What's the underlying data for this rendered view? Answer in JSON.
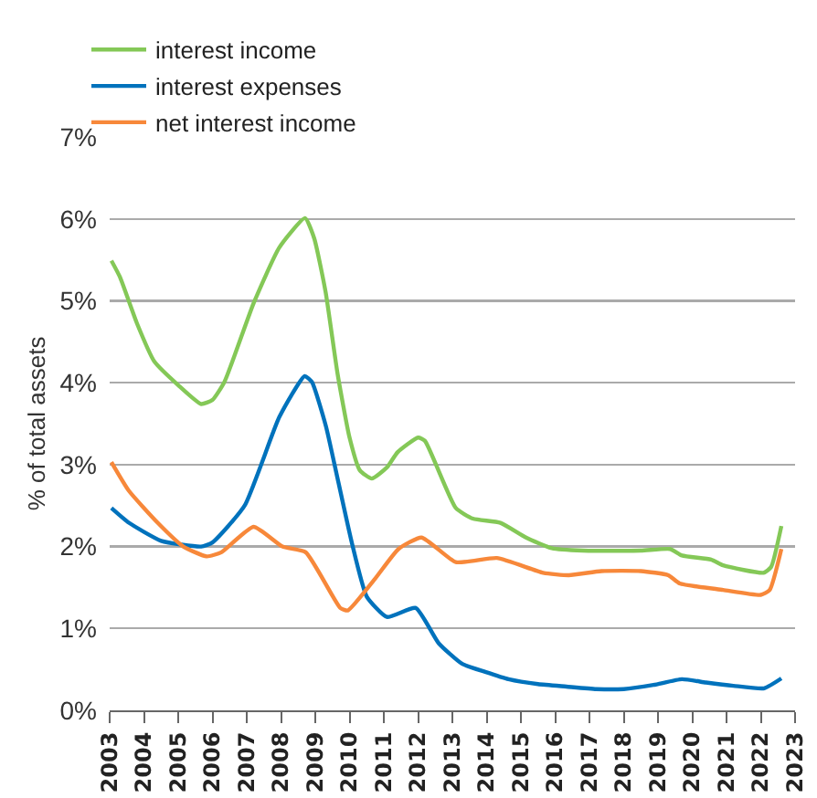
{
  "chart_data": {
    "type": "line",
    "ylabel": "% of total assets",
    "legend": "top left",
    "grid": "y",
    "marker": "none",
    "line_style": "solid",
    "xlim": [
      2003,
      2023
    ],
    "xticks": [
      2003,
      2004,
      2005,
      2006,
      2007,
      2008,
      2009,
      2010,
      2011,
      2012,
      2013,
      2014,
      2015,
      2016,
      2017,
      2018,
      2019,
      2020,
      2021,
      2022,
      2023
    ],
    "ylim": [
      0,
      7
    ],
    "yticks": [
      {
        "value": 0,
        "label": "0%"
      },
      {
        "value": 1,
        "label": "1%"
      },
      {
        "value": 2,
        "label": "2%"
      },
      {
        "value": 3,
        "label": "3%"
      },
      {
        "value": 4,
        "label": "4%"
      },
      {
        "value": 5,
        "label": "5%"
      },
      {
        "value": 6,
        "label": "6%"
      },
      {
        "value": 7,
        "label": "7%"
      }
    ],
    "series": [
      {
        "name": "interest income",
        "color": "#84c857",
        "x": [
          2003.05,
          2003.3,
          2003.8,
          2004.3,
          2005.0,
          2005.67,
          2006.0,
          2006.35,
          2007.2,
          2007.95,
          2008.7,
          2008.97,
          2009.3,
          2009.65,
          2010.0,
          2010.3,
          2010.65,
          2011.1,
          2011.4,
          2012.0,
          2012.2,
          2013.1,
          2013.6,
          2014.4,
          2015.15,
          2015.9,
          2016.8,
          2018.5,
          2019.35,
          2019.7,
          2020.55,
          2020.9,
          2022.08,
          2022.3,
          2022.6
        ],
        "values": [
          5.49,
          5.29,
          4.72,
          4.26,
          3.97,
          3.74,
          3.79,
          4.01,
          4.97,
          5.65,
          6.01,
          5.76,
          5.11,
          4.11,
          3.33,
          2.93,
          2.83,
          2.97,
          3.15,
          3.33,
          3.29,
          2.47,
          2.34,
          2.29,
          2.11,
          1.98,
          1.95,
          1.95,
          1.97,
          1.89,
          1.84,
          1.77,
          1.68,
          1.75,
          2.25
        ]
      },
      {
        "name": "interest expenses",
        "color": "#0072bc",
        "x": [
          2003.05,
          2003.56,
          2004.5,
          2005.67,
          2006.0,
          2006.94,
          2007.95,
          2008.69,
          2008.9,
          2009.31,
          2009.65,
          2010.07,
          2010.5,
          2011.09,
          2011.93,
          2012.6,
          2013.28,
          2013.96,
          2014.64,
          2015.5,
          2016.33,
          2017.2,
          2018.0,
          2018.87,
          2019.7,
          2020.4,
          2021.2,
          2022.1,
          2022.6
        ],
        "values": [
          2.47,
          2.29,
          2.07,
          2.0,
          2.05,
          2.5,
          3.58,
          4.08,
          4.01,
          3.47,
          2.83,
          2.04,
          1.39,
          1.14,
          1.25,
          0.82,
          0.57,
          0.47,
          0.38,
          0.32,
          0.29,
          0.26,
          0.26,
          0.31,
          0.38,
          0.34,
          0.3,
          0.27,
          0.39
        ]
      },
      {
        "name": "net interest income",
        "color": "#f7883a",
        "x": [
          2003.05,
          2003.56,
          2004.4,
          2005.15,
          2005.83,
          2006.26,
          2007.2,
          2008.04,
          2008.72,
          2009.73,
          2009.95,
          2010.75,
          2011.43,
          2012.1,
          2013.1,
          2014.3,
          2015.65,
          2016.4,
          2017.35,
          2018.5,
          2019.3,
          2019.63,
          2020.9,
          2022.0,
          2022.26,
          2022.6
        ],
        "values": [
          3.03,
          2.68,
          2.29,
          2.0,
          1.88,
          1.93,
          2.24,
          2.0,
          1.93,
          1.25,
          1.22,
          1.61,
          1.97,
          2.11,
          1.81,
          1.86,
          1.68,
          1.65,
          1.7,
          1.7,
          1.65,
          1.55,
          1.47,
          1.41,
          1.47,
          1.97
        ]
      }
    ]
  }
}
